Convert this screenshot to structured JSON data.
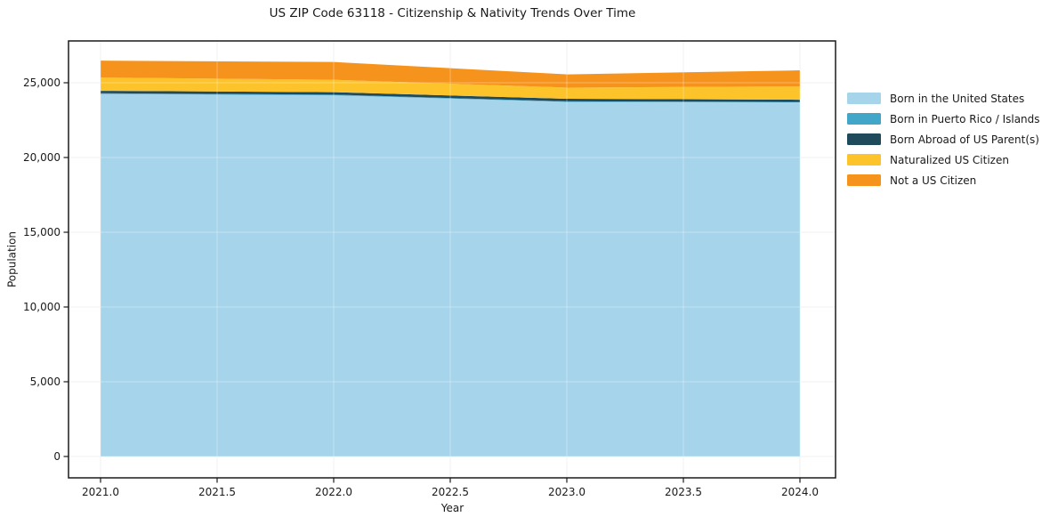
{
  "chart_data": {
    "type": "area",
    "title": "US ZIP Code 63118 - Citizenship & Nativity Trends Over Time",
    "xlabel": "Year",
    "ylabel": "Population",
    "stacked": true,
    "grid": true,
    "legend_position": "right",
    "xlim": [
      2021,
      2024
    ],
    "ylim": [
      0,
      25000
    ],
    "x": [
      2021,
      2022,
      2023,
      2024
    ],
    "series": [
      {
        "name": "Born in the United States",
        "color": "#a6d4ea",
        "values": [
          24250,
          24160,
          23720,
          23690
        ]
      },
      {
        "name": "Born in Puerto Rico / Islands",
        "color": "#41a6c7",
        "values": [
          50,
          45,
          35,
          30
        ]
      },
      {
        "name": "Born Abroad of US Parent(s)",
        "color": "#1f4a5c",
        "values": [
          160,
          165,
          175,
          145
        ]
      },
      {
        "name": "Naturalized US Citizen",
        "color": "#fcc32b",
        "values": [
          890,
          830,
          745,
          895
        ]
      },
      {
        "name": "Not a US Citizen",
        "color": "#f6931d",
        "values": [
          1130,
          1190,
          885,
          1070
        ]
      }
    ],
    "x_tick_values": [
      2021.0,
      2021.5,
      2022.0,
      2022.5,
      2023.0,
      2023.5,
      2024.0
    ],
    "x_tick_labels": [
      "2021.0",
      "2021.5",
      "2022.0",
      "2022.5",
      "2023.0",
      "2023.5",
      "2024.0"
    ],
    "y_tick_values": [
      0,
      5000,
      10000,
      15000,
      20000,
      25000
    ],
    "y_tick_labels": [
      "0",
      "5,000",
      "10,000",
      "15,000",
      "20,000",
      "25,000"
    ],
    "colors": {
      "background": "#ffffff",
      "gridline": "#e9e9e9",
      "spine": "#1a1a1a",
      "text": "#1a1a1a"
    }
  }
}
